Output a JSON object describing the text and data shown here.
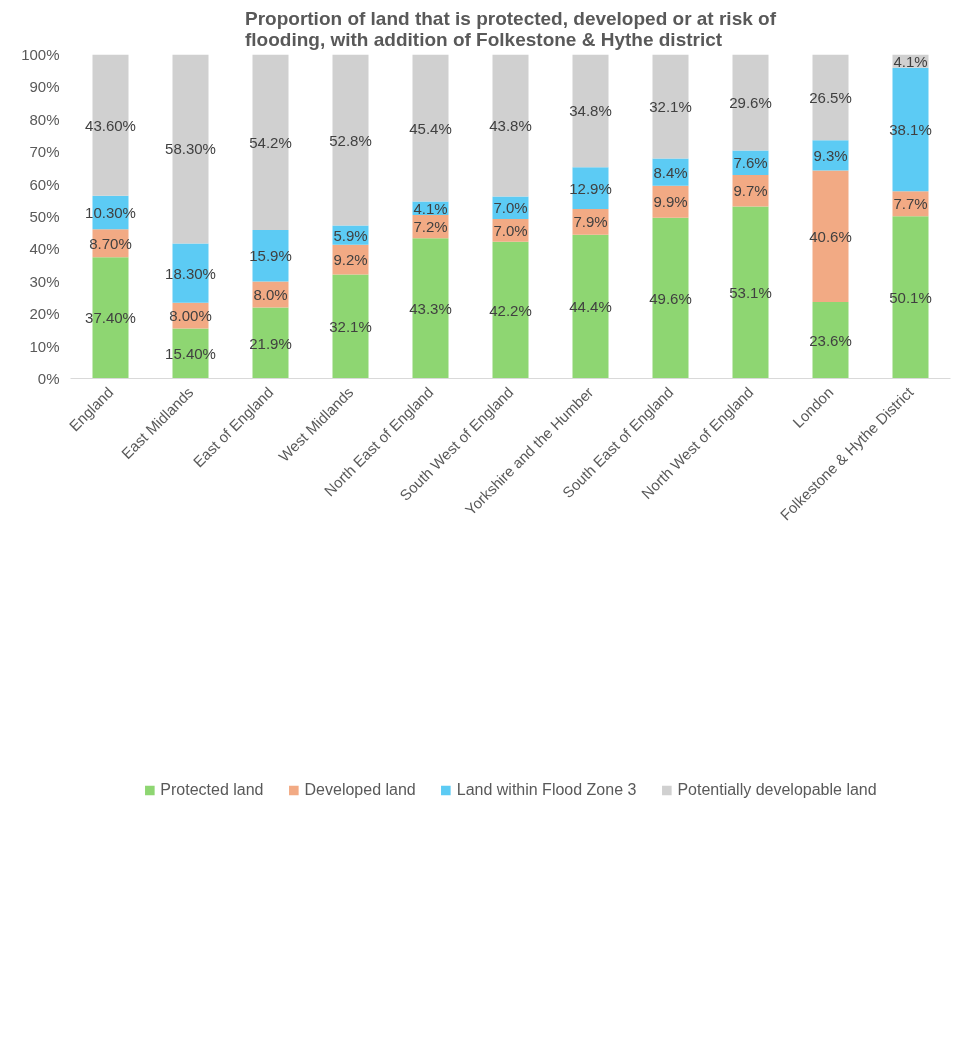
{
  "chart_data": {
    "type": "bar",
    "stacked": true,
    "title": "Proportion of land that is protected, developed or at risk of flooding, with addition of Folkestone & Hythe district",
    "categories": [
      "England",
      "East Midlands",
      "East of England",
      "West Midlands",
      "North East of England",
      "South West of England",
      "Yorkshire and the Humber",
      "South East of England",
      "North West of England",
      "London",
      "Folkestone & Hythe District"
    ],
    "series": [
      {
        "name": "Protected land",
        "color": "#8ed672",
        "values": [
          37.4,
          15.4,
          21.9,
          32.1,
          43.3,
          42.2,
          44.4,
          49.6,
          53.1,
          23.6,
          50.1
        ],
        "value_labels": [
          "37.40%",
          "15.40%",
          "21.9%",
          "32.1%",
          "43.3%",
          "42.2%",
          "44.4%",
          "49.6%",
          "53.1%",
          "23.6%",
          "50.1%"
        ]
      },
      {
        "name": "Developed land",
        "color": "#f2aa84",
        "values": [
          8.7,
          8.0,
          8.0,
          9.2,
          7.2,
          7.0,
          7.9,
          9.9,
          9.7,
          40.6,
          7.7
        ],
        "value_labels": [
          "8.70%",
          "8.00%",
          "8.0%",
          "9.2%",
          "7.2%",
          "7.0%",
          "7.9%",
          "9.9%",
          "9.7%",
          "40.6%",
          "7.7%"
        ]
      },
      {
        "name": "Land within Flood Zone 3",
        "color": "#5ccbf4",
        "values": [
          10.3,
          18.3,
          15.9,
          5.9,
          4.1,
          7.0,
          12.9,
          8.4,
          7.6,
          9.3,
          38.1
        ],
        "value_labels": [
          "10.30%",
          "18.30%",
          "15.9%",
          "5.9%",
          "4.1%",
          "7.0%",
          "12.9%",
          "8.4%",
          "7.6%",
          "9.3%",
          "38.1%"
        ]
      },
      {
        "name": "Potentially developable land",
        "color": "#d0d0d0",
        "values": [
          43.6,
          58.3,
          54.2,
          52.8,
          45.4,
          43.8,
          34.8,
          32.1,
          29.6,
          26.5,
          4.1
        ],
        "value_labels": [
          "43.60%",
          "58.30%",
          "54.2%",
          "52.8%",
          "45.4%",
          "43.8%",
          "34.8%",
          "32.1%",
          "29.6%",
          "26.5%",
          "4.1%"
        ]
      }
    ],
    "ylim": [
      0,
      100
    ],
    "yticks": [
      {
        "value": 0,
        "label": "0%"
      },
      {
        "value": 10,
        "label": "10%"
      },
      {
        "value": 20,
        "label": "20%"
      },
      {
        "value": 30,
        "label": "30%"
      },
      {
        "value": 40,
        "label": "40%"
      },
      {
        "value": 50,
        "label": "50%"
      },
      {
        "value": 60,
        "label": "60%"
      },
      {
        "value": 70,
        "label": "70%"
      },
      {
        "value": 80,
        "label": "80%"
      },
      {
        "value": 90,
        "label": "90%"
      },
      {
        "value": 100,
        "label": "100%"
      }
    ],
    "grid": false,
    "legend": "bottom"
  }
}
